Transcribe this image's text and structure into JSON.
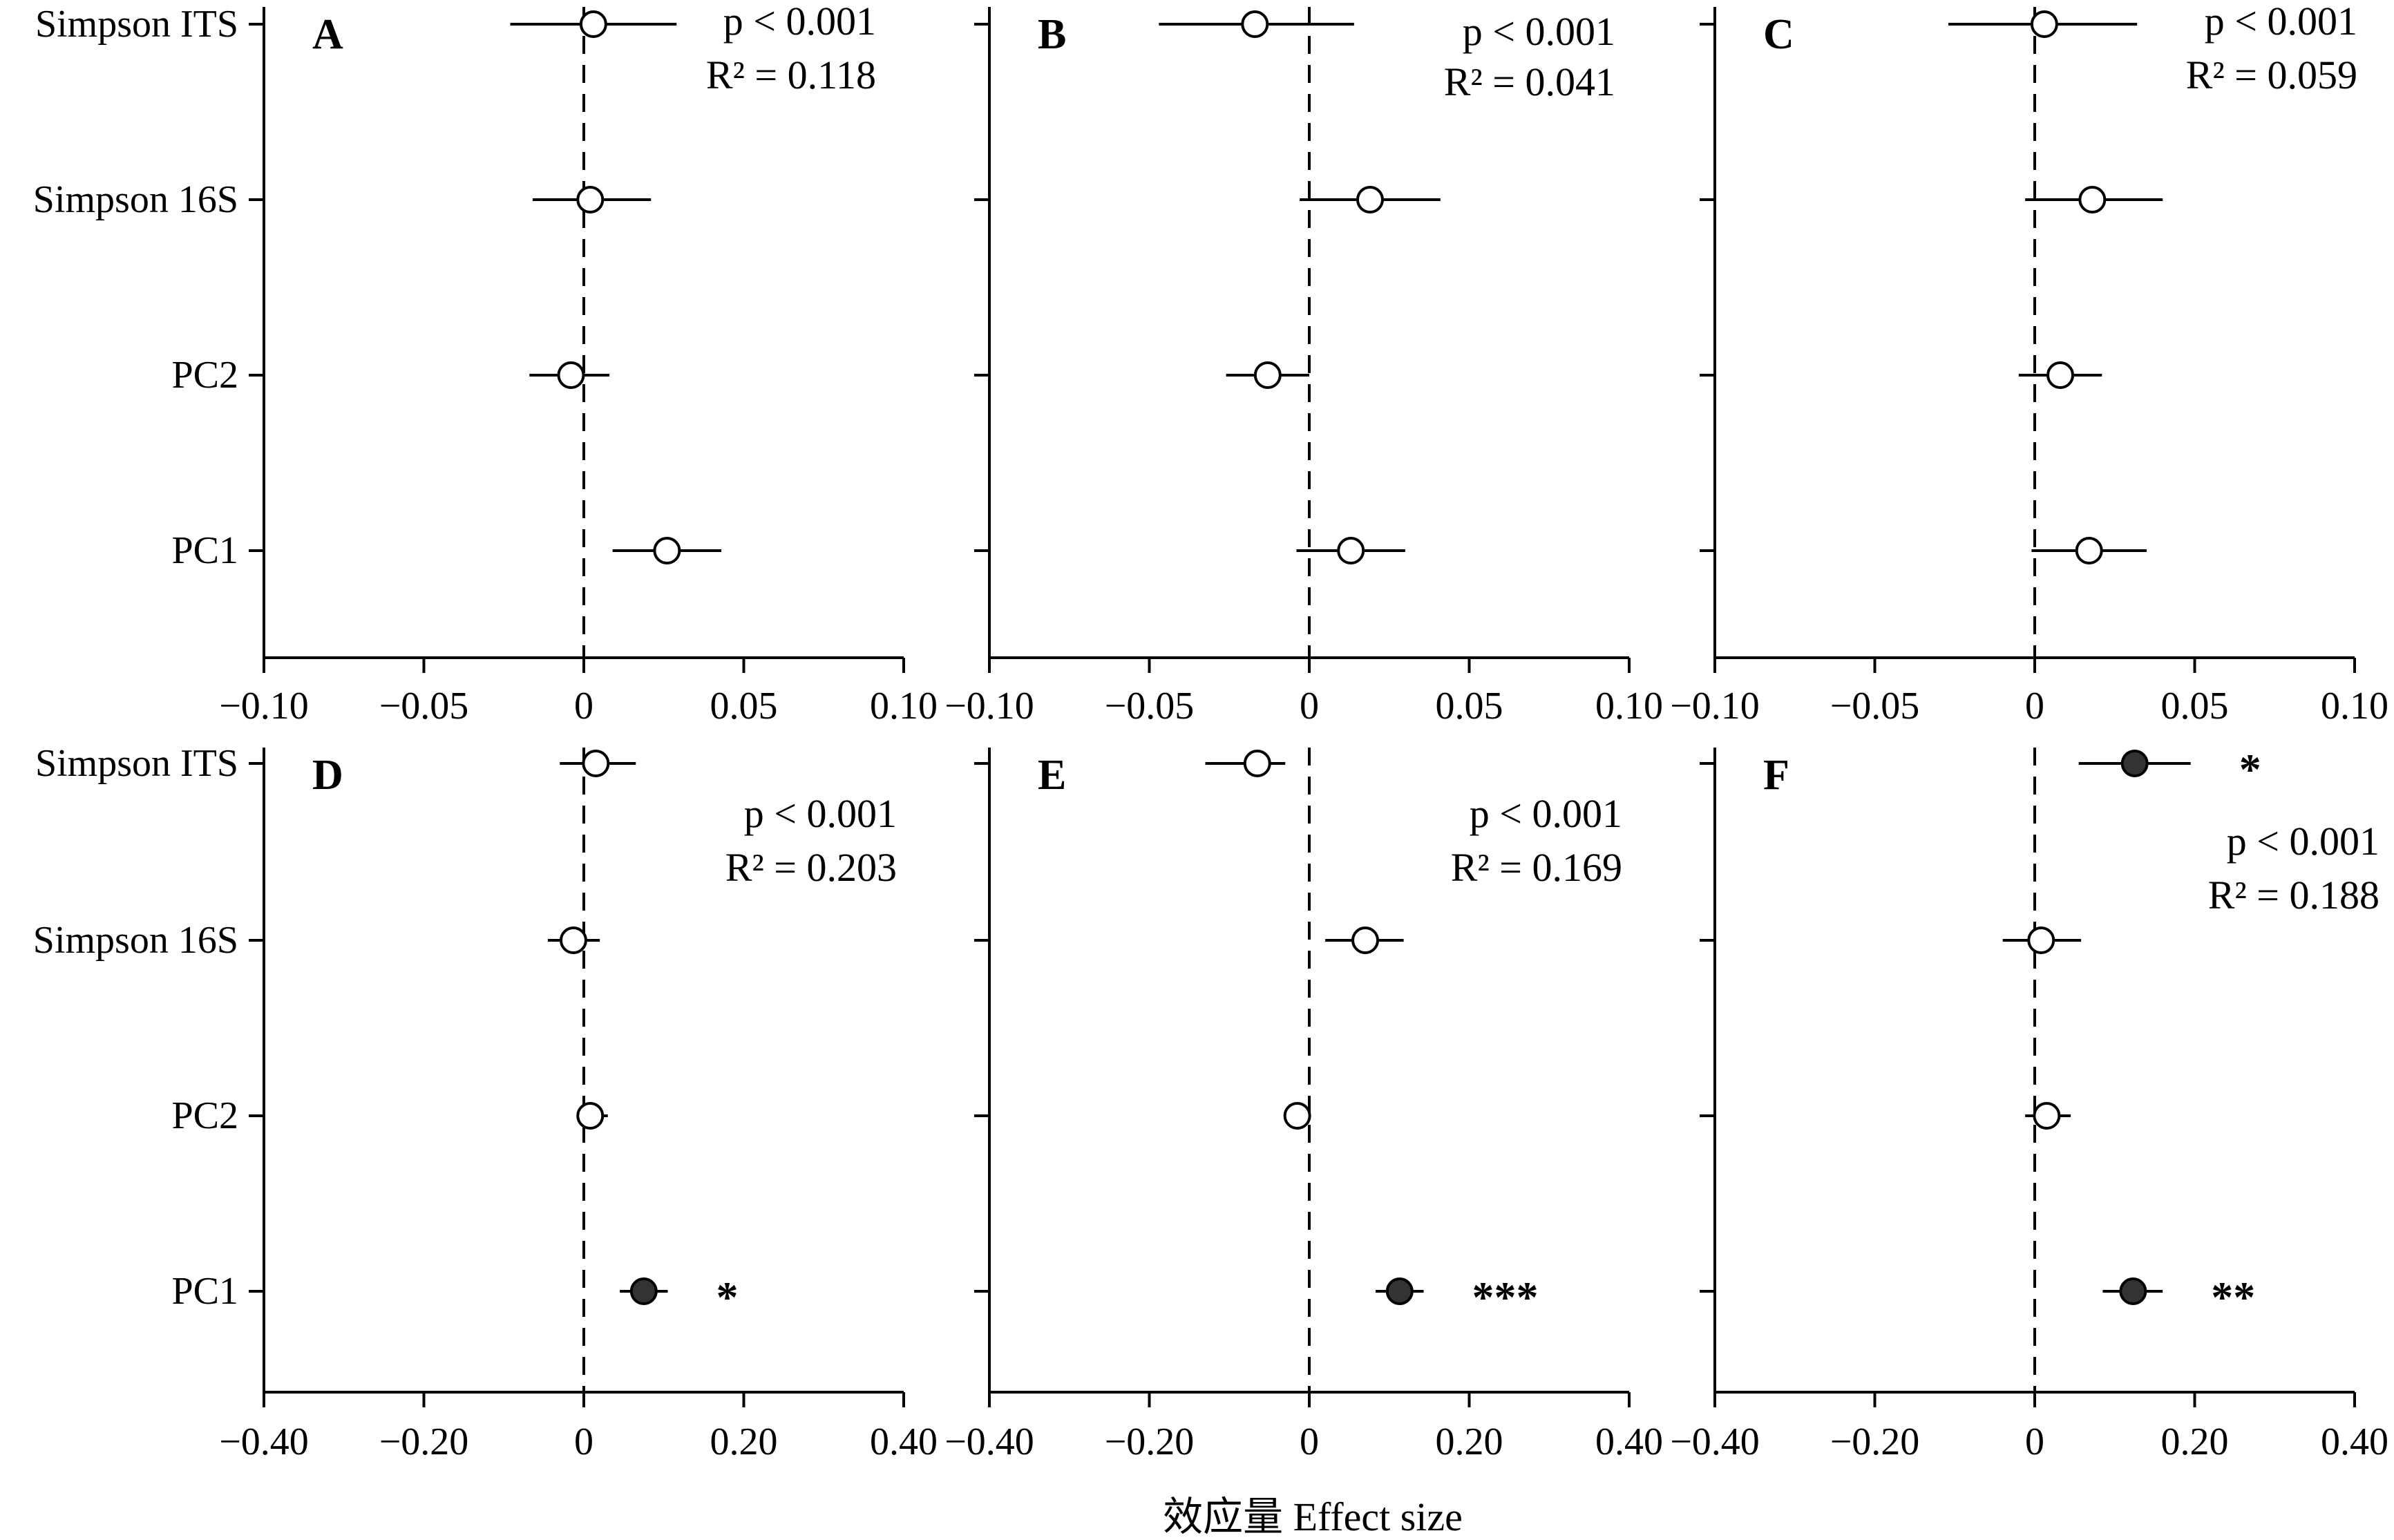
{
  "figure": {
    "xlabel": "效应量 Effect size",
    "categories": [
      "Simpson ITS",
      "Simpson 16S",
      "PC2",
      "PC1"
    ],
    "colors": {
      "significant": "#333333",
      "nonsignificant": "#ffffff",
      "stroke": "#000000"
    }
  },
  "chart_data": [
    {
      "type": "scatter",
      "panel": "A",
      "categories": [
        "Simpson ITS",
        "Simpson 16S",
        "PC2",
        "PC1"
      ],
      "xlim": [
        -0.1,
        0.1
      ],
      "xticks": [
        "−0.10",
        "−0.05",
        "0",
        "0.05",
        "0.10"
      ],
      "estimates": [
        0.003,
        0.002,
        -0.004,
        0.026
      ],
      "ci_low": [
        -0.023,
        -0.016,
        -0.017,
        0.009
      ],
      "ci_high": [
        0.029,
        0.021,
        0.008,
        0.043
      ],
      "significance": [
        "",
        "",
        "",
        ""
      ],
      "stats": {
        "p": "p < 0.001",
        "r2": "R² = 0.118"
      }
    },
    {
      "type": "scatter",
      "panel": "B",
      "categories": [
        "Simpson ITS",
        "Simpson 16S",
        "PC2",
        "PC1"
      ],
      "xlim": [
        -0.1,
        0.1
      ],
      "xticks": [
        "−0.10",
        "−0.05",
        "0",
        "0.05",
        "0.10"
      ],
      "estimates": [
        -0.017,
        0.019,
        -0.013,
        0.013
      ],
      "ci_low": [
        -0.047,
        -0.003,
        -0.026,
        -0.004
      ],
      "ci_high": [
        0.014,
        0.041,
        0.0,
        0.03
      ],
      "significance": [
        "",
        "",
        "",
        ""
      ],
      "stats": {
        "p": "p < 0.001",
        "r2": "R² = 0.041"
      }
    },
    {
      "type": "scatter",
      "panel": "C",
      "categories": [
        "Simpson ITS",
        "Simpson 16S",
        "PC2",
        "PC1"
      ],
      "xlim": [
        -0.1,
        0.1
      ],
      "xticks": [
        "−0.10",
        "−0.05",
        "0",
        "0.05",
        "0.10"
      ],
      "estimates": [
        0.003,
        0.018,
        0.008,
        0.017
      ],
      "ci_low": [
        -0.027,
        -0.003,
        -0.005,
        -0.001
      ],
      "ci_high": [
        0.032,
        0.04,
        0.021,
        0.035
      ],
      "significance": [
        "",
        "",
        "",
        ""
      ],
      "stats": {
        "p": "p < 0.001",
        "r2": "R² = 0.059"
      }
    },
    {
      "type": "scatter",
      "panel": "D",
      "categories": [
        "Simpson ITS",
        "Simpson 16S",
        "PC2",
        "PC1"
      ],
      "xlim": [
        -0.4,
        0.4
      ],
      "xticks": [
        "−0.40",
        "−0.20",
        "0",
        "0.20",
        "0.40"
      ],
      "estimates": [
        0.015,
        -0.013,
        0.008,
        0.075
      ],
      "ci_low": [
        -0.03,
        -0.045,
        -0.008,
        0.045
      ],
      "ci_high": [
        0.065,
        0.02,
        0.03,
        0.105
      ],
      "significance": [
        "",
        "",
        "",
        "*"
      ],
      "stats": {
        "p": "p < 0.001",
        "r2": "R² = 0.203"
      }
    },
    {
      "type": "scatter",
      "panel": "E",
      "categories": [
        "Simpson ITS",
        "Simpson 16S",
        "PC2",
        "PC1"
      ],
      "xlim": [
        -0.4,
        0.4
      ],
      "xticks": [
        "−0.40",
        "−0.20",
        "0",
        "0.20",
        "0.40"
      ],
      "estimates": [
        -0.065,
        0.07,
        -0.015,
        0.113
      ],
      "ci_low": [
        -0.13,
        0.02,
        -0.03,
        0.083
      ],
      "ci_high": [
        -0.03,
        0.118,
        -0.003,
        0.143
      ],
      "significance": [
        "",
        "",
        "",
        "***"
      ],
      "stats": {
        "p": "p < 0.001",
        "r2": "R² = 0.169"
      }
    },
    {
      "type": "scatter",
      "panel": "F",
      "categories": [
        "Simpson ITS",
        "Simpson 16S",
        "PC2",
        "PC1"
      ],
      "xlim": [
        -0.4,
        0.4
      ],
      "xticks": [
        "−0.40",
        "−0.20",
        "0",
        "0.20",
        "0.40"
      ],
      "estimates": [
        0.125,
        0.008,
        0.015,
        0.123
      ],
      "ci_low": [
        0.055,
        -0.04,
        -0.012,
        0.085
      ],
      "ci_high": [
        0.195,
        0.058,
        0.045,
        0.16
      ],
      "significance": [
        "*",
        "",
        "",
        "**"
      ],
      "stats": {
        "p": "p < 0.001",
        "r2": "R² = 0.188"
      }
    }
  ]
}
